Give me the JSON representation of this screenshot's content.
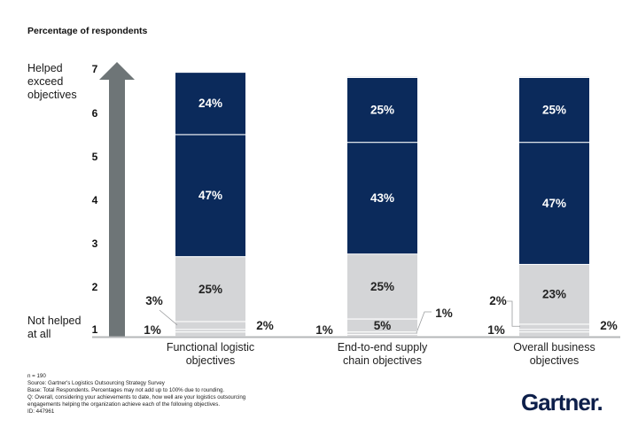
{
  "chart_data": {
    "type": "bar",
    "stacked": true,
    "title": "Percentage of respondents",
    "ylabel_top": "Helped exceed objectives",
    "ylabel_bottom": "Not helped at all",
    "scale_ticks": [
      "1",
      "2",
      "3",
      "4",
      "5",
      "6",
      "7"
    ],
    "categories": [
      "Functional logistic objectives",
      "End-to-end supply chain objectives",
      "Overall business objectives"
    ],
    "category_lines": [
      [
        "Functional logistic",
        "objectives"
      ],
      [
        "End-to-end supply",
        "chain objectives"
      ],
      [
        "Overall business",
        "objectives"
      ]
    ],
    "series_order_note": "segments listed bottom to top",
    "bars": [
      {
        "category": "Functional logistic objectives",
        "segments": [
          {
            "value": 2,
            "label": "2%",
            "label_pos": "right"
          },
          {
            "value": 1,
            "label": "1%",
            "label_pos": "left"
          },
          {
            "value": 3,
            "label": "3%",
            "label_pos": "left-leader"
          },
          {
            "value": 25,
            "label": "25%",
            "label_pos": "inside"
          },
          {
            "value": 47,
            "label": "47%",
            "label_pos": "inside"
          },
          {
            "value": 24,
            "label": "24%",
            "label_pos": "inside"
          }
        ]
      },
      {
        "category": "End-to-end supply chain objectives",
        "segments": [
          {
            "value": 1,
            "label": "1%",
            "label_pos": "left"
          },
          {
            "value": 1,
            "label": "1%",
            "label_pos": "right-leader"
          },
          {
            "value": 5,
            "label": "5%",
            "label_pos": "inside"
          },
          {
            "value": 25,
            "label": "25%",
            "label_pos": "inside"
          },
          {
            "value": 43,
            "label": "43%",
            "label_pos": "inside"
          },
          {
            "value": 25,
            "label": "25%",
            "label_pos": "inside"
          }
        ]
      },
      {
        "category": "Overall business objectives",
        "segments": [
          {
            "value": 2,
            "label": "2%",
            "label_pos": "right"
          },
          {
            "value": 1,
            "label": "1%",
            "label_pos": "left"
          },
          {
            "value": 2,
            "label": "2%",
            "label_pos": "left-leader"
          },
          {
            "value": 23,
            "label": "23%",
            "label_pos": "inside"
          },
          {
            "value": 47,
            "label": "47%",
            "label_pos": "inside"
          },
          {
            "value": 25,
            "label": "25%",
            "label_pos": "inside"
          }
        ]
      }
    ],
    "colors": {
      "dark": "#0b2a5b",
      "light": "#d4d5d7",
      "arrow": "#6e7577",
      "axis": "#b5b7b9"
    }
  },
  "footnotes": [
    "n = 190",
    "Source: Gartner's Logistics Outsourcing Strategy Survey",
    "Base: Total Respondents. Percentages may not add up to 100% due to rounding.",
    "Q: Overall, considering your achievements to date, how well are your logistics outsourcing",
    "engagements helping the organization achieve each of the following objectives.",
    "ID: 447961"
  ],
  "logo": {
    "text": "Gartner",
    "dot": "."
  }
}
